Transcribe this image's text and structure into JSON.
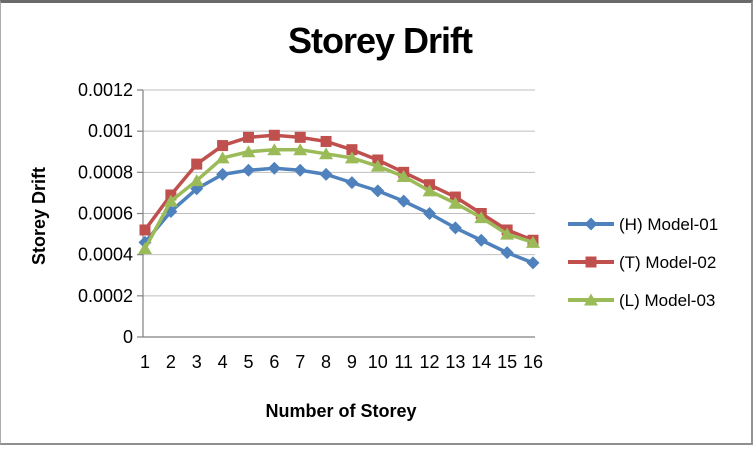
{
  "chart_data": {
    "type": "line",
    "title": "Storey Drift",
    "xlabel": "Number of Storey",
    "ylabel": "Storey Drift",
    "categories": [
      "1",
      "2",
      "3",
      "4",
      "5",
      "6",
      "7",
      "8",
      "9",
      "10",
      "11",
      "12",
      "13",
      "14",
      "15",
      "16"
    ],
    "ylim": [
      0,
      0.0012
    ],
    "ytick_step": 0.0002,
    "ytick_labels": [
      "0",
      "0.0002",
      "0.0004",
      "0.0006",
      "0.0008",
      "0.001",
      "0.0012"
    ],
    "grid": true,
    "legend_position": "right",
    "axis_color": "#808080",
    "gridline_color": "#bfbfbf",
    "series": [
      {
        "name": "(H) Model-01",
        "color": "#4F81BD",
        "marker": "diamond",
        "values": [
          0.00046,
          0.00061,
          0.00072,
          0.00079,
          0.00081,
          0.00082,
          0.00081,
          0.00079,
          0.00075,
          0.00071,
          0.00066,
          0.0006,
          0.00053,
          0.00047,
          0.00041,
          0.00036
        ]
      },
      {
        "name": "(T) Model-02",
        "color": "#C0504D",
        "marker": "square",
        "values": [
          0.00052,
          0.00069,
          0.00084,
          0.00093,
          0.00097,
          0.00098,
          0.00097,
          0.00095,
          0.00091,
          0.00086,
          0.0008,
          0.00074,
          0.00068,
          0.0006,
          0.00052,
          0.00047
        ]
      },
      {
        "name": "(L) Model-03",
        "color": "#9BBB59",
        "marker": "triangle",
        "values": [
          0.00043,
          0.00066,
          0.00076,
          0.00087,
          0.0009,
          0.00091,
          0.00091,
          0.00089,
          0.00087,
          0.00083,
          0.00078,
          0.00071,
          0.00065,
          0.00058,
          0.0005,
          0.00046
        ]
      }
    ]
  }
}
